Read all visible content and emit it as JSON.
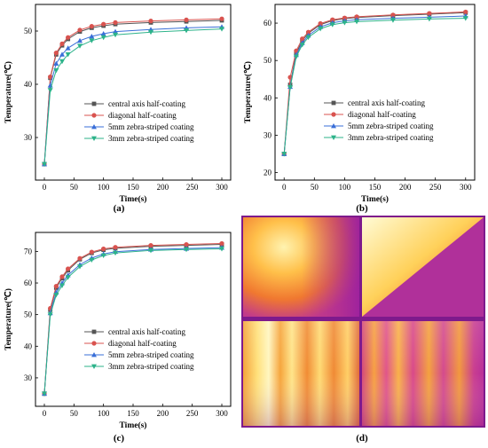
{
  "colors": {
    "central": "#555555",
    "diagonal": "#d9534f",
    "zebra5": "#3a6fd8",
    "zebra3": "#2db38a"
  },
  "chart_data": [
    {
      "type": "line",
      "panel": "(a)",
      "xlabel": "Time(s)",
      "ylabel": "Temperature(℃)",
      "xlim": [
        -15,
        315
      ],
      "ylim": [
        22,
        55
      ],
      "xticks": [
        "0",
        "50",
        "100",
        "150",
        "200",
        "250",
        "300"
      ],
      "yticks": [
        "30",
        "40",
        "50"
      ],
      "x": [
        0,
        10,
        20,
        30,
        40,
        60,
        80,
        100,
        120,
        180,
        240,
        300
      ],
      "series": [
        {
          "name": "central axis half-coating",
          "values": [
            25,
            41.2,
            45.6,
            47.3,
            48.5,
            49.9,
            50.6,
            51.0,
            51.3,
            51.6,
            51.8,
            52.0
          ]
        },
        {
          "name": "diagonal half-coating",
          "values": [
            25,
            41.4,
            45.9,
            47.6,
            48.8,
            50.2,
            50.9,
            51.3,
            51.6,
            51.9,
            52.1,
            52.3
          ]
        },
        {
          "name": "5mm zebra-striped coating",
          "values": [
            25,
            39.8,
            43.9,
            45.6,
            46.8,
            48.2,
            49.0,
            49.5,
            49.9,
            50.3,
            50.6,
            50.8
          ]
        },
        {
          "name": "3mm zebra-striped coating",
          "values": [
            25,
            38.9,
            42.6,
            44.3,
            45.6,
            47.2,
            48.2,
            48.8,
            49.3,
            49.8,
            50.1,
            50.4
          ]
        }
      ]
    },
    {
      "type": "line",
      "panel": "(b)",
      "xlabel": "Time(s)",
      "ylabel": "Temperature(℃)",
      "xlim": [
        -15,
        315
      ],
      "ylim": [
        18,
        65
      ],
      "xticks": [
        "0",
        "50",
        "100",
        "150",
        "200",
        "250",
        "300"
      ],
      "yticks": [
        "20",
        "30",
        "40",
        "50",
        "60"
      ],
      "x": [
        0,
        10,
        20,
        30,
        40,
        60,
        80,
        100,
        120,
        180,
        240,
        300
      ],
      "series": [
        {
          "name": "central axis half-coating",
          "values": [
            25,
            43.5,
            52.0,
            55.3,
            57.3,
            59.6,
            60.7,
            61.2,
            61.5,
            62.0,
            62.4,
            62.8
          ]
        },
        {
          "name": "diagonal half-coating",
          "values": [
            25,
            45.5,
            52.6,
            55.8,
            57.6,
            59.9,
            60.9,
            61.4,
            61.7,
            62.2,
            62.6,
            63.0
          ]
        },
        {
          "name": "5mm zebra-striped coating",
          "values": [
            25,
            43.0,
            51.5,
            54.7,
            56.7,
            59.0,
            60.1,
            60.6,
            60.9,
            61.3,
            61.6,
            61.9
          ]
        },
        {
          "name": "3mm zebra-striped coating",
          "values": [
            25,
            42.8,
            51.0,
            54.2,
            56.2,
            58.5,
            59.6,
            60.1,
            60.4,
            60.8,
            61.1,
            61.3
          ]
        }
      ]
    },
    {
      "type": "line",
      "panel": "(c)",
      "xlabel": "Time(s)",
      "ylabel": "Temperature(℃)",
      "xlim": [
        -15,
        315
      ],
      "ylim": [
        21,
        76
      ],
      "xticks": [
        "0",
        "50",
        "100",
        "150",
        "200",
        "250",
        "300"
      ],
      "yticks": [
        "30",
        "40",
        "50",
        "60",
        "70"
      ],
      "x": [
        0,
        10,
        20,
        30,
        40,
        60,
        80,
        100,
        120,
        180,
        240,
        300
      ],
      "series": [
        {
          "name": "central axis half-coating",
          "values": [
            25,
            51.5,
            58.5,
            61.5,
            64.0,
            67.5,
            69.5,
            70.5,
            71.0,
            71.6,
            71.9,
            72.2
          ]
        },
        {
          "name": "diagonal half-coating",
          "values": [
            25,
            52.0,
            59.0,
            62.0,
            64.5,
            67.8,
            69.8,
            70.8,
            71.3,
            71.9,
            72.2,
            72.5
          ]
        },
        {
          "name": "5mm zebra-striped coating",
          "values": [
            25,
            50.5,
            57.0,
            60.0,
            62.5,
            65.8,
            67.9,
            69.2,
            69.9,
            70.6,
            70.9,
            71.2
          ]
        },
        {
          "name": "3mm zebra-striped coating",
          "values": [
            25,
            50.0,
            56.2,
            59.2,
            61.8,
            65.2,
            67.3,
            68.7,
            69.5,
            70.3,
            70.6,
            70.8
          ]
        }
      ]
    }
  ],
  "captions": {
    "a": "(a)",
    "b": "(b)",
    "c": "(c)",
    "d": "(d)"
  }
}
